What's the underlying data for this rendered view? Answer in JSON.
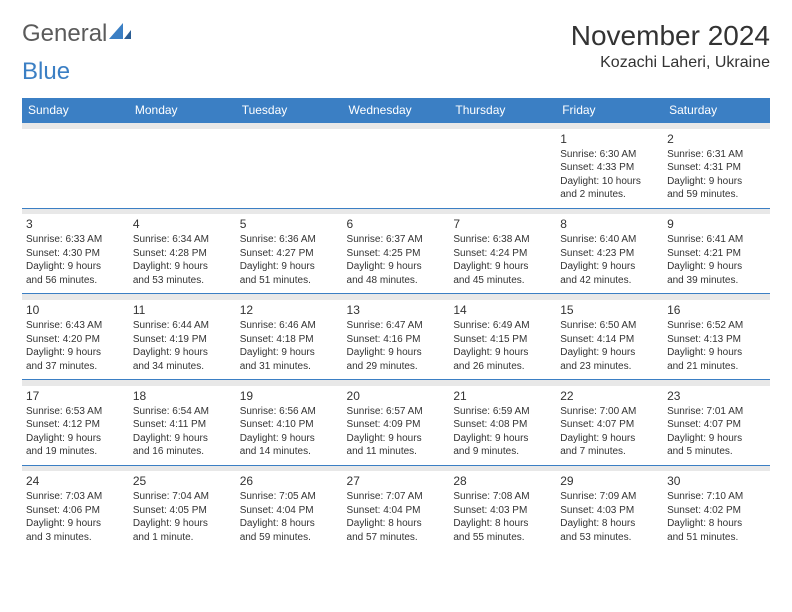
{
  "brand": {
    "part1": "General",
    "part2": "Blue"
  },
  "title": "November 2024",
  "location": "Kozachi Laheri, Ukraine",
  "colors": {
    "header_bg": "#3b7fc4",
    "header_text": "#ffffff",
    "sep_bg": "#e8e8e8",
    "sep_border": "#3b7fc4",
    "text": "#333333",
    "logo_gray": "#5b5b5b",
    "logo_blue": "#3b7fc4",
    "page_bg": "#ffffff"
  },
  "days": [
    "Sunday",
    "Monday",
    "Tuesday",
    "Wednesday",
    "Thursday",
    "Friday",
    "Saturday"
  ],
  "weeks": [
    [
      null,
      null,
      null,
      null,
      null,
      {
        "n": "1",
        "sr": "Sunrise: 6:30 AM",
        "ss": "Sunset: 4:33 PM",
        "d1": "Daylight: 10 hours",
        "d2": "and 2 minutes."
      },
      {
        "n": "2",
        "sr": "Sunrise: 6:31 AM",
        "ss": "Sunset: 4:31 PM",
        "d1": "Daylight: 9 hours",
        "d2": "and 59 minutes."
      }
    ],
    [
      {
        "n": "3",
        "sr": "Sunrise: 6:33 AM",
        "ss": "Sunset: 4:30 PM",
        "d1": "Daylight: 9 hours",
        "d2": "and 56 minutes."
      },
      {
        "n": "4",
        "sr": "Sunrise: 6:34 AM",
        "ss": "Sunset: 4:28 PM",
        "d1": "Daylight: 9 hours",
        "d2": "and 53 minutes."
      },
      {
        "n": "5",
        "sr": "Sunrise: 6:36 AM",
        "ss": "Sunset: 4:27 PM",
        "d1": "Daylight: 9 hours",
        "d2": "and 51 minutes."
      },
      {
        "n": "6",
        "sr": "Sunrise: 6:37 AM",
        "ss": "Sunset: 4:25 PM",
        "d1": "Daylight: 9 hours",
        "d2": "and 48 minutes."
      },
      {
        "n": "7",
        "sr": "Sunrise: 6:38 AM",
        "ss": "Sunset: 4:24 PM",
        "d1": "Daylight: 9 hours",
        "d2": "and 45 minutes."
      },
      {
        "n": "8",
        "sr": "Sunrise: 6:40 AM",
        "ss": "Sunset: 4:23 PM",
        "d1": "Daylight: 9 hours",
        "d2": "and 42 minutes."
      },
      {
        "n": "9",
        "sr": "Sunrise: 6:41 AM",
        "ss": "Sunset: 4:21 PM",
        "d1": "Daylight: 9 hours",
        "d2": "and 39 minutes."
      }
    ],
    [
      {
        "n": "10",
        "sr": "Sunrise: 6:43 AM",
        "ss": "Sunset: 4:20 PM",
        "d1": "Daylight: 9 hours",
        "d2": "and 37 minutes."
      },
      {
        "n": "11",
        "sr": "Sunrise: 6:44 AM",
        "ss": "Sunset: 4:19 PM",
        "d1": "Daylight: 9 hours",
        "d2": "and 34 minutes."
      },
      {
        "n": "12",
        "sr": "Sunrise: 6:46 AM",
        "ss": "Sunset: 4:18 PM",
        "d1": "Daylight: 9 hours",
        "d2": "and 31 minutes."
      },
      {
        "n": "13",
        "sr": "Sunrise: 6:47 AM",
        "ss": "Sunset: 4:16 PM",
        "d1": "Daylight: 9 hours",
        "d2": "and 29 minutes."
      },
      {
        "n": "14",
        "sr": "Sunrise: 6:49 AM",
        "ss": "Sunset: 4:15 PM",
        "d1": "Daylight: 9 hours",
        "d2": "and 26 minutes."
      },
      {
        "n": "15",
        "sr": "Sunrise: 6:50 AM",
        "ss": "Sunset: 4:14 PM",
        "d1": "Daylight: 9 hours",
        "d2": "and 23 minutes."
      },
      {
        "n": "16",
        "sr": "Sunrise: 6:52 AM",
        "ss": "Sunset: 4:13 PM",
        "d1": "Daylight: 9 hours",
        "d2": "and 21 minutes."
      }
    ],
    [
      {
        "n": "17",
        "sr": "Sunrise: 6:53 AM",
        "ss": "Sunset: 4:12 PM",
        "d1": "Daylight: 9 hours",
        "d2": "and 19 minutes."
      },
      {
        "n": "18",
        "sr": "Sunrise: 6:54 AM",
        "ss": "Sunset: 4:11 PM",
        "d1": "Daylight: 9 hours",
        "d2": "and 16 minutes."
      },
      {
        "n": "19",
        "sr": "Sunrise: 6:56 AM",
        "ss": "Sunset: 4:10 PM",
        "d1": "Daylight: 9 hours",
        "d2": "and 14 minutes."
      },
      {
        "n": "20",
        "sr": "Sunrise: 6:57 AM",
        "ss": "Sunset: 4:09 PM",
        "d1": "Daylight: 9 hours",
        "d2": "and 11 minutes."
      },
      {
        "n": "21",
        "sr": "Sunrise: 6:59 AM",
        "ss": "Sunset: 4:08 PM",
        "d1": "Daylight: 9 hours",
        "d2": "and 9 minutes."
      },
      {
        "n": "22",
        "sr": "Sunrise: 7:00 AM",
        "ss": "Sunset: 4:07 PM",
        "d1": "Daylight: 9 hours",
        "d2": "and 7 minutes."
      },
      {
        "n": "23",
        "sr": "Sunrise: 7:01 AM",
        "ss": "Sunset: 4:07 PM",
        "d1": "Daylight: 9 hours",
        "d2": "and 5 minutes."
      }
    ],
    [
      {
        "n": "24",
        "sr": "Sunrise: 7:03 AM",
        "ss": "Sunset: 4:06 PM",
        "d1": "Daylight: 9 hours",
        "d2": "and 3 minutes."
      },
      {
        "n": "25",
        "sr": "Sunrise: 7:04 AM",
        "ss": "Sunset: 4:05 PM",
        "d1": "Daylight: 9 hours",
        "d2": "and 1 minute."
      },
      {
        "n": "26",
        "sr": "Sunrise: 7:05 AM",
        "ss": "Sunset: 4:04 PM",
        "d1": "Daylight: 8 hours",
        "d2": "and 59 minutes."
      },
      {
        "n": "27",
        "sr": "Sunrise: 7:07 AM",
        "ss": "Sunset: 4:04 PM",
        "d1": "Daylight: 8 hours",
        "d2": "and 57 minutes."
      },
      {
        "n": "28",
        "sr": "Sunrise: 7:08 AM",
        "ss": "Sunset: 4:03 PM",
        "d1": "Daylight: 8 hours",
        "d2": "and 55 minutes."
      },
      {
        "n": "29",
        "sr": "Sunrise: 7:09 AM",
        "ss": "Sunset: 4:03 PM",
        "d1": "Daylight: 8 hours",
        "d2": "and 53 minutes."
      },
      {
        "n": "30",
        "sr": "Sunrise: 7:10 AM",
        "ss": "Sunset: 4:02 PM",
        "d1": "Daylight: 8 hours",
        "d2": "and 51 minutes."
      }
    ]
  ]
}
